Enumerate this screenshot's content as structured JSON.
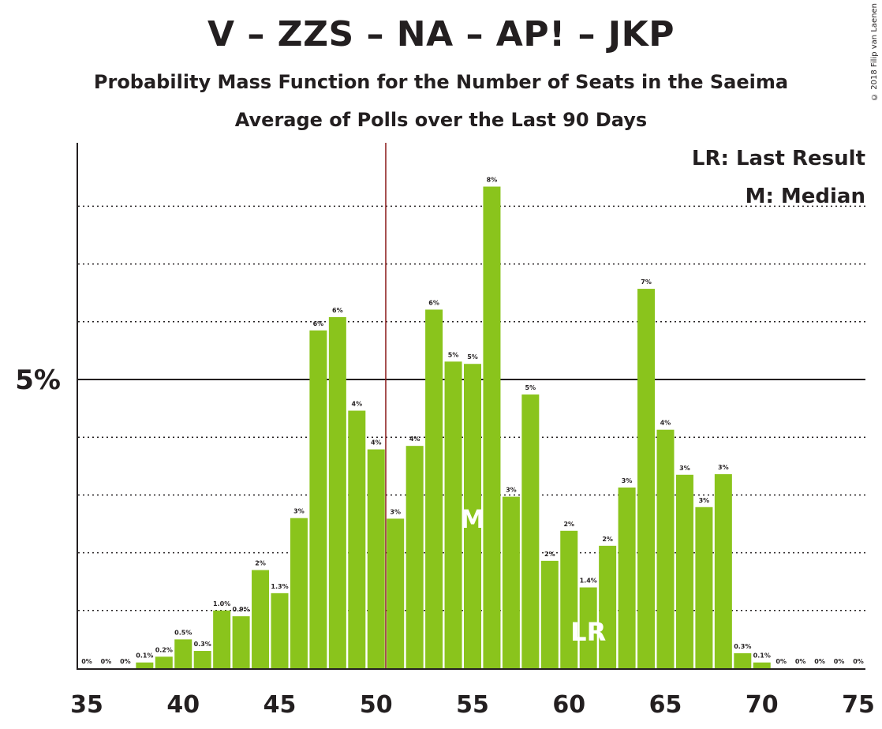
{
  "title": "V – ZZS – NA – AP! – JKP",
  "subtitle": "Probability Mass Function for the Number of Seats in the Saeima",
  "subtitle2": "Average of Polls over the Last 90 Days",
  "copyright": "© 2018 Filip van Laenen",
  "legend": {
    "lr": "LR: Last Result",
    "m": "M: Median"
  },
  "colors": {
    "bar": "#8ac41c",
    "majority_line": "#8b1a1a",
    "axis": "#231f20"
  },
  "chart_data": {
    "type": "bar",
    "x": [
      35,
      36,
      37,
      38,
      39,
      40,
      41,
      42,
      43,
      44,
      45,
      46,
      47,
      48,
      49,
      50,
      51,
      52,
      53,
      54,
      55,
      56,
      57,
      58,
      59,
      60,
      61,
      62,
      63,
      64,
      65,
      66,
      67,
      68,
      69,
      70,
      71,
      72,
      73,
      74,
      75
    ],
    "values": [
      0,
      0,
      0,
      0.1,
      0.2,
      0.5,
      0.3,
      1.0,
      0.9,
      1.7,
      1.3,
      2.6,
      5.85,
      6.08,
      4.46,
      3.79,
      2.59,
      3.85,
      6.21,
      5.31,
      5.27,
      8.34,
      2.97,
      4.74,
      1.86,
      2.38,
      1.4,
      2.12,
      3.13,
      6.57,
      4.13,
      3.35,
      2.79,
      3.36,
      0.26,
      0.1,
      0,
      0,
      0,
      0,
      0
    ],
    "labels": [
      "0%",
      "0%",
      "0%",
      "0.1%",
      "0.2%",
      "0.5%",
      "0.3%",
      "1.0%",
      "0.9%",
      "2%",
      "1.3%",
      "3%",
      "6%",
      "6%",
      "4%",
      "4%",
      "3%",
      "4%",
      "6%",
      "5%",
      "5%",
      "8%",
      "3%",
      "5%",
      "2%",
      "2%",
      "1.4%",
      "2%",
      "3%",
      "7%",
      "4%",
      "3%",
      "3%",
      "3%",
      "0.3%",
      "0.1%",
      "0%",
      "0%",
      "0%",
      "0%",
      "0%"
    ],
    "x_ticks": [
      "35",
      "40",
      "45",
      "50",
      "55",
      "60",
      "65",
      "70",
      "75"
    ],
    "x_tick_values": [
      35,
      40,
      45,
      50,
      55,
      60,
      65,
      70,
      75
    ],
    "y_tick_label": "5%",
    "y_tick_value": 5,
    "grid_values": [
      1,
      2,
      3,
      4,
      6,
      7,
      8
    ],
    "xlim": [
      35,
      75
    ],
    "ylim": [
      0,
      9.1
    ],
    "majority_line_x": 50.5,
    "median": {
      "x": 55,
      "label": "M"
    },
    "last_result": {
      "x": 61,
      "label": "LR"
    }
  }
}
